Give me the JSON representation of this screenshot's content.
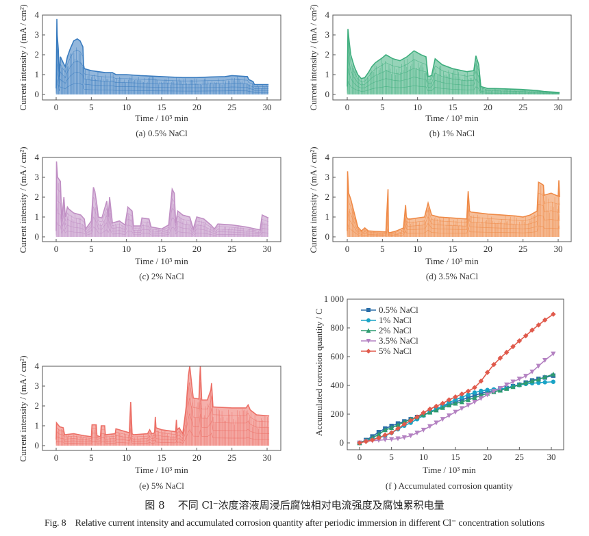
{
  "figure": {
    "caption_cn_prefix": "图 8",
    "caption_cn": "不同 Cl⁻浓度溶液周浸后腐蚀相对电流强度及腐蚀累积电量",
    "caption_en_prefix": "Fig. 8",
    "caption_en": "Relative current intensity and accumulated corrosion quantity after periodic immersion in different Cl⁻ concentration solutions"
  },
  "chart_data": [
    {
      "id": "a",
      "type": "area",
      "subtitle": "(a) 0.5% NaCl",
      "xlabel": "Time / 10³ min",
      "ylabel": "Current intensity / (mA / cm²)",
      "xlim": [
        -1.5,
        31.5
      ],
      "ylim": [
        -0.2,
        4
      ],
      "xticks": [
        0,
        5,
        10,
        15,
        20,
        25,
        30
      ],
      "yticks": [
        0,
        1,
        2,
        3,
        4
      ],
      "color": "#3a7cbf",
      "envelope": {
        "x": [
          0,
          0.1,
          0.15,
          0.3,
          0.45,
          0.6,
          1.0,
          1.3,
          1.6,
          2.0,
          2.5,
          3.0,
          3.4,
          3.8,
          3.9,
          4.0,
          5,
          6,
          7,
          8,
          8.5,
          10,
          12,
          15,
          18,
          20,
          22,
          24,
          25,
          27.2,
          27.4,
          28,
          28.2,
          30.2
        ],
        "y": [
          0.3,
          3.8,
          3.0,
          2.3,
          0.9,
          1.9,
          1.6,
          1.4,
          1.9,
          2.3,
          2.7,
          2.8,
          2.7,
          2.4,
          1.5,
          1.3,
          1.2,
          1.15,
          1.1,
          1.1,
          1.0,
          1.0,
          0.95,
          0.9,
          0.85,
          0.85,
          0.88,
          0.9,
          0.95,
          0.9,
          0.75,
          0.65,
          0.5,
          0.5
        ]
      }
    },
    {
      "id": "b",
      "type": "area",
      "subtitle": "(b) 1% NaCl",
      "xlabel": "Time / 10³ min",
      "ylabel": "Current intensity / (mA / cm²)",
      "xlim": [
        -1.5,
        31.5
      ],
      "ylim": [
        -0.2,
        4
      ],
      "xticks": [
        0,
        5,
        10,
        15,
        20,
        25,
        30
      ],
      "yticks": [
        0,
        1,
        2,
        3,
        4
      ],
      "color": "#3fae7e",
      "envelope": {
        "x": [
          0,
          0.1,
          0.3,
          0.5,
          1.0,
          1.5,
          2.0,
          2.5,
          3.0,
          3.5,
          4.0,
          5.0,
          5.5,
          6.5,
          7.5,
          8.5,
          9.5,
          10.5,
          11.2,
          11.5,
          12.0,
          12.5,
          13.5,
          15,
          17,
          18,
          18.3,
          18.7,
          19,
          20,
          21,
          25,
          27,
          28,
          30.2
        ],
        "y": [
          0.4,
          3.3,
          2.6,
          2.0,
          1.4,
          1.0,
          0.8,
          0.85,
          1.1,
          1.4,
          1.6,
          1.85,
          2.0,
          1.8,
          1.7,
          1.9,
          2.2,
          2.0,
          1.9,
          0.9,
          0.95,
          1.8,
          1.5,
          1.3,
          1.15,
          1.2,
          1.95,
          1.5,
          0.4,
          0.3,
          0.3,
          0.25,
          0.2,
          0.15,
          0.1
        ]
      }
    },
    {
      "id": "c",
      "type": "area",
      "subtitle": "(c) 2% NaCl",
      "xlabel": "Time / 10³ min",
      "ylabel": "Current intensity / (mA / cm²)",
      "xlim": [
        -1.5,
        31.5
      ],
      "ylim": [
        -0.2,
        4
      ],
      "xticks": [
        0,
        5,
        10,
        15,
        20,
        25,
        30
      ],
      "yticks": [
        0,
        1,
        2,
        3,
        4
      ],
      "color": "#c08fc4",
      "envelope": {
        "x": [
          0,
          0.05,
          0.2,
          0.6,
          0.8,
          1.1,
          1.3,
          1.6,
          1.8,
          2.5,
          3.5,
          4.0,
          4.2,
          5.0,
          5.3,
          5.5,
          5.8,
          6.0,
          6.5,
          7.2,
          7.4,
          7.6,
          8.0,
          9.0,
          9.8,
          10.2,
          10.8,
          11.0,
          12.0,
          12.2,
          13.2,
          13.5,
          15,
          16.0,
          16.5,
          16.8,
          17.0,
          17.3,
          18,
          19,
          19.5,
          20,
          21,
          22,
          22.5,
          23,
          25,
          27,
          29,
          29.3,
          30.2
        ],
        "y": [
          0.3,
          3.8,
          3.0,
          2.8,
          0.9,
          2.0,
          1.0,
          1.5,
          1.4,
          1.2,
          1.1,
          0.9,
          0.4,
          0.8,
          2.5,
          2.3,
          1.6,
          1.0,
          0.95,
          1.8,
          1.0,
          2.0,
          0.7,
          0.8,
          0.6,
          1.5,
          1.3,
          0.55,
          0.55,
          0.95,
          0.9,
          0.5,
          0.4,
          0.6,
          2.4,
          2.2,
          0.7,
          1.3,
          1.1,
          1.0,
          0.4,
          1.0,
          0.9,
          0.6,
          0.4,
          0.65,
          0.6,
          0.5,
          0.35,
          1.1,
          0.95
        ]
      }
    },
    {
      "id": "d",
      "type": "area",
      "subtitle": "(d) 3.5% NaCl",
      "xlabel": "Time / 10³ min",
      "ylabel": "Current intensity / (mA / cm²)",
      "xlim": [
        -1.5,
        31.5
      ],
      "ylim": [
        -0.2,
        4
      ],
      "xticks": [
        0,
        5,
        10,
        15,
        20,
        25,
        30
      ],
      "yticks": [
        0,
        1,
        2,
        3,
        4
      ],
      "color": "#ef8a47",
      "envelope": {
        "x": [
          0,
          0.05,
          0.2,
          0.5,
          1.0,
          1.5,
          2.0,
          2.5,
          3.0,
          4,
          5.5,
          5.8,
          5.85,
          6.0,
          7.0,
          8.0,
          8.3,
          8.4,
          8.6,
          9.0,
          10,
          11,
          11.5,
          12,
          13,
          15,
          17,
          17.2,
          17.4,
          17.6,
          20,
          22,
          24,
          25,
          26,
          27,
          27.2,
          27.5,
          27.9,
          28.0,
          29,
          30.0,
          30.1,
          30.2
        ],
        "y": [
          0.3,
          3.3,
          2.2,
          1.9,
          1.2,
          0.5,
          0.3,
          0.45,
          0.3,
          0.28,
          0.25,
          2.4,
          0.25,
          0.2,
          0.3,
          0.45,
          1.6,
          1.0,
          0.9,
          0.9,
          0.95,
          1.0,
          1.7,
          1.1,
          1.0,
          0.95,
          0.9,
          2.3,
          1.3,
          1.25,
          1.15,
          1.1,
          1.05,
          1.0,
          1.1,
          1.3,
          2.75,
          2.7,
          2.6,
          2.1,
          2.2,
          2.05,
          2.85,
          2.0
        ]
      }
    },
    {
      "id": "e",
      "type": "area",
      "subtitle": "(e) 5% NaCl",
      "xlabel": "Time / 10³ min",
      "ylabel": "Current intensity / (mA / cm²)",
      "xlim": [
        -1.5,
        31.5
      ],
      "ylim": [
        -0.2,
        4
      ],
      "xticks": [
        0,
        5,
        10,
        15,
        20,
        25,
        30
      ],
      "yticks": [
        0,
        1,
        2,
        3,
        4
      ],
      "color": "#ec6f66",
      "envelope": {
        "x": [
          0,
          0.05,
          0.5,
          1.0,
          1.2,
          2.5,
          4.0,
          5.0,
          5.1,
          5.7,
          5.8,
          6.3,
          6.4,
          6.9,
          7.0,
          8.4,
          8.5,
          10.4,
          10.6,
          10.8,
          11.0,
          13.0,
          13.3,
          13.6,
          14.0,
          14.1,
          14.2,
          15,
          17.0,
          17.1,
          17.2,
          17.5,
          18.0,
          18.3,
          18.5,
          18.8,
          19.0,
          19.3,
          19.5,
          20.3,
          20.5,
          20.7,
          21.5,
          22.0,
          22.1,
          22.3,
          25,
          27.0,
          27.3,
          27.6,
          28.5,
          30.3
        ],
        "y": [
          0.3,
          1.15,
          0.95,
          0.9,
          0.55,
          0.6,
          0.5,
          0.45,
          1.05,
          1.05,
          0.5,
          0.45,
          1.0,
          1.0,
          0.55,
          0.6,
          0.85,
          0.65,
          2.2,
          0.6,
          0.55,
          0.6,
          0.8,
          0.6,
          0.65,
          1.45,
          0.9,
          0.8,
          0.7,
          1.3,
          0.8,
          0.9,
          0.6,
          1.4,
          2.0,
          3.5,
          4.0,
          3.0,
          2.4,
          2.35,
          4.0,
          2.3,
          2.3,
          2.8,
          3.15,
          1.95,
          1.9,
          1.9,
          2.05,
          1.8,
          1.55,
          1.5
        ]
      }
    },
    {
      "id": "f",
      "type": "line",
      "subtitle": "(f ) Accumulated corrosion quantity",
      "xlabel": "Time / 10³ min",
      "ylabel": "Accumulated corrosion quantity / C",
      "xlim": [
        -2,
        32
      ],
      "ylim": [
        -50,
        1000
      ],
      "xticks": [
        0,
        5,
        10,
        15,
        20,
        25,
        30
      ],
      "yticks": [
        0,
        200,
        400,
        600,
        800,
        1000
      ],
      "ytick_labels": [
        "0",
        "200",
        "400",
        "600",
        "800",
        "1 000"
      ],
      "legend_position": "top-left",
      "x": [
        0,
        1,
        2,
        3,
        4,
        5,
        6,
        7,
        8,
        9,
        10,
        11,
        12,
        13,
        14,
        15,
        16,
        17,
        18,
        19,
        20,
        21,
        22,
        23,
        24,
        25,
        26,
        27,
        28,
        29,
        30.3
      ],
      "series": [
        {
          "name": "0.5% NaCl",
          "color": "#2b6ea8",
          "marker": "square",
          "values": [
            0,
            20,
            45,
            75,
            100,
            118,
            135,
            150,
            165,
            180,
            195,
            215,
            235,
            255,
            270,
            285,
            300,
            315,
            330,
            345,
            355,
            365,
            372,
            382,
            395,
            405,
            420,
            435,
            445,
            455,
            468
          ]
        },
        {
          "name": "1% NaCl",
          "color": "#1aa3c6",
          "marker": "circle",
          "values": [
            0,
            15,
            25,
            35,
            50,
            70,
            95,
            120,
            140,
            165,
            190,
            215,
            235,
            255,
            280,
            300,
            318,
            335,
            350,
            362,
            368,
            372,
            375,
            380,
            392,
            402,
            410,
            415,
            418,
            422,
            425
          ]
        },
        {
          "name": "2% NaCl",
          "color": "#2e9c70",
          "marker": "triangle-up",
          "values": [
            0,
            18,
            35,
            60,
            90,
            105,
            125,
            145,
            165,
            180,
            195,
            212,
            228,
            245,
            262,
            275,
            285,
            300,
            315,
            330,
            345,
            355,
            365,
            378,
            390,
            405,
            418,
            430,
            442,
            458,
            478
          ]
        },
        {
          "name": "3.5% NaCl",
          "color": "#b482c2",
          "marker": "triangle-down",
          "values": [
            0,
            10,
            15,
            18,
            22,
            25,
            30,
            38,
            50,
            70,
            90,
            115,
            140,
            165,
            190,
            215,
            240,
            262,
            285,
            310,
            335,
            360,
            380,
            405,
            425,
            445,
            465,
            495,
            535,
            575,
            620
          ]
        },
        {
          "name": "5% NaCl",
          "color": "#e05a4c",
          "marker": "diamond",
          "values": [
            0,
            10,
            20,
            35,
            55,
            70,
            100,
            130,
            155,
            180,
            210,
            235,
            255,
            275,
            300,
            320,
            340,
            360,
            385,
            430,
            490,
            545,
            590,
            630,
            670,
            710,
            745,
            785,
            820,
            855,
            895
          ]
        }
      ]
    }
  ]
}
